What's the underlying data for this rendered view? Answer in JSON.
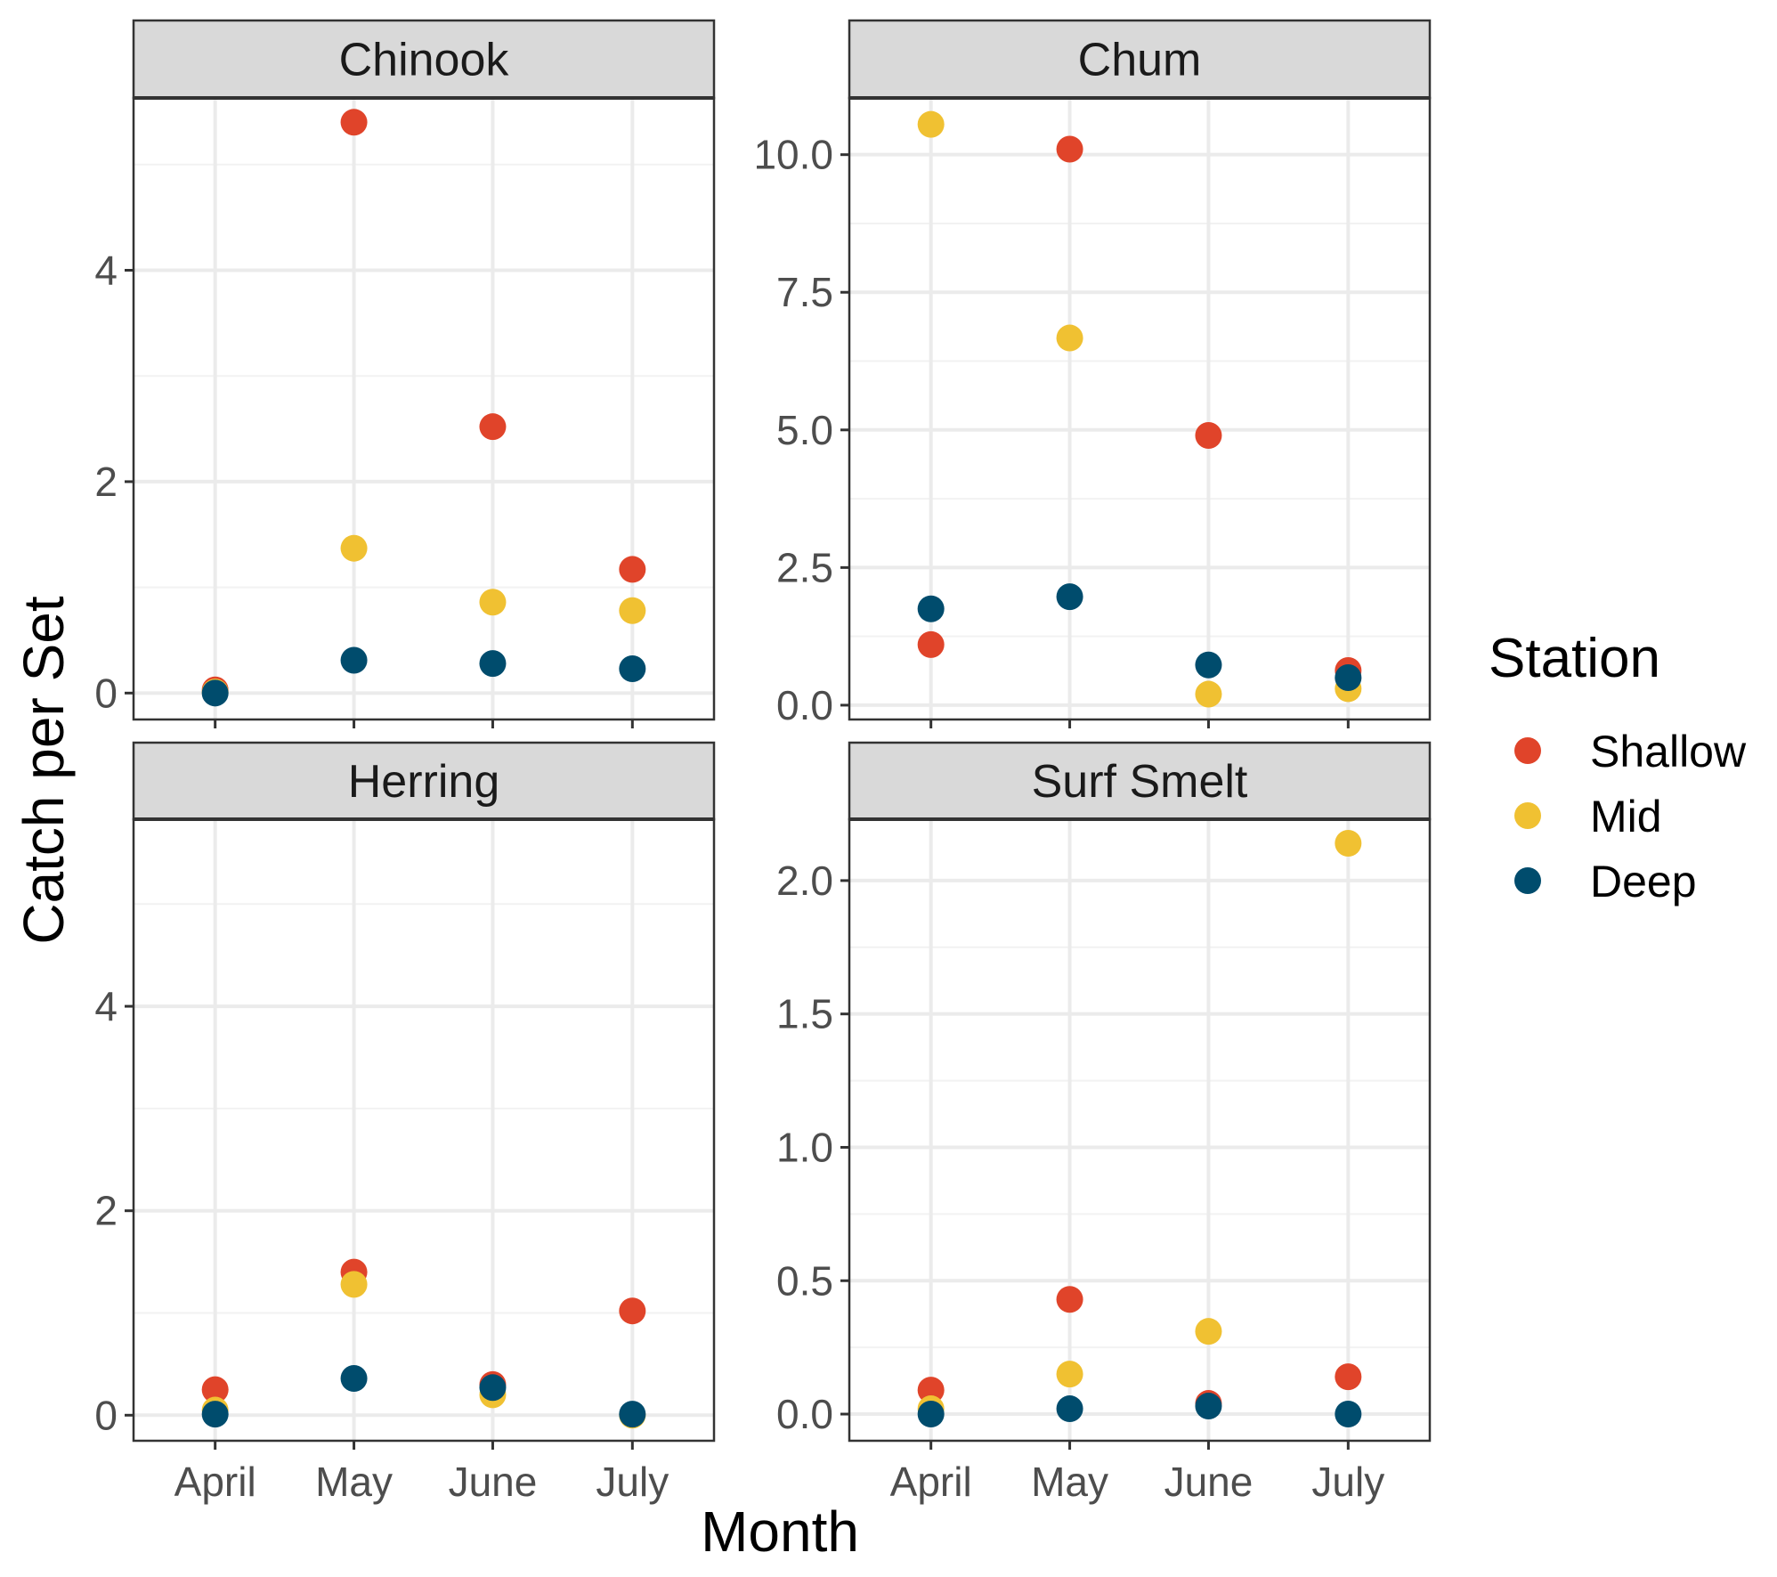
{
  "chart_data": {
    "type": "scatter",
    "xlabel": "Month",
    "ylabel": "Catch per Set",
    "categories": [
      "April",
      "May",
      "June",
      "July"
    ],
    "legend": {
      "title": "Station",
      "position": "right",
      "entries": [
        {
          "name": "Shallow",
          "color": "#E0442A"
        },
        {
          "name": "Mid",
          "color": "#F0C132"
        },
        {
          "name": "Deep",
          "color": "#004C6D"
        }
      ]
    },
    "grid": true,
    "panels": [
      {
        "title": "Chinook",
        "ylim": [
          -0.25,
          5.63
        ],
        "yticks": [
          0,
          2,
          4
        ],
        "ytick_labels": [
          "0",
          "2",
          "4"
        ],
        "series": [
          {
            "name": "Shallow",
            "values": [
              0.03,
              5.4,
              2.52,
              1.17
            ]
          },
          {
            "name": "Mid",
            "values": [
              0.01,
              1.37,
              0.86,
              0.78
            ]
          },
          {
            "name": "Deep",
            "values": [
              0.0,
              0.31,
              0.28,
              0.23
            ]
          }
        ]
      },
      {
        "title": "Chum",
        "ylim": [
          -0.26,
          11.03
        ],
        "yticks": [
          0,
          2.5,
          5,
          7.5,
          10
        ],
        "ytick_labels": [
          "0.0",
          "2.5",
          "5.0",
          "7.5",
          "10.0"
        ],
        "series": [
          {
            "name": "Shallow",
            "values": [
              1.1,
              10.1,
              4.9,
              0.63
            ]
          },
          {
            "name": "Mid",
            "values": [
              10.55,
              6.67,
              0.2,
              0.3
            ]
          },
          {
            "name": "Deep",
            "values": [
              1.75,
              1.97,
              0.73,
              0.5
            ]
          }
        ]
      },
      {
        "title": "Herring",
        "ylim": [
          -0.25,
          5.83
        ],
        "yticks": [
          0,
          2,
          4
        ],
        "ytick_labels": [
          "0",
          "2",
          "4"
        ],
        "series": [
          {
            "name": "Shallow",
            "values": [
              0.25,
              1.4,
              0.3,
              1.02
            ]
          },
          {
            "name": "Mid",
            "values": [
              0.05,
              1.28,
              0.2,
              0.0
            ]
          },
          {
            "name": "Deep",
            "values": [
              0.01,
              0.36,
              0.27,
              0.01
            ]
          }
        ]
      },
      {
        "title": "Surf Smelt",
        "ylim": [
          -0.1,
          2.23
        ],
        "yticks": [
          0,
          0.5,
          1,
          1.5,
          2
        ],
        "ytick_labels": [
          "0.0",
          "0.5",
          "1.0",
          "1.5",
          "2.0"
        ],
        "series": [
          {
            "name": "Shallow",
            "values": [
              0.09,
              0.43,
              0.04,
              0.14
            ]
          },
          {
            "name": "Mid",
            "values": [
              0.02,
              0.15,
              0.31,
              2.14
            ]
          },
          {
            "name": "Deep",
            "values": [
              0.0,
              0.02,
              0.03,
              0.0
            ]
          }
        ]
      }
    ]
  }
}
